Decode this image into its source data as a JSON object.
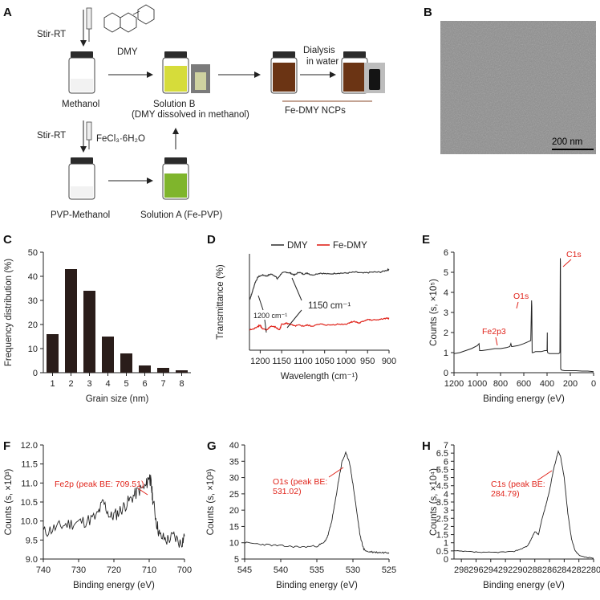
{
  "panels": {
    "A": "A",
    "B": "B",
    "C": "C",
    "D": "D",
    "E": "E",
    "F": "F",
    "G": "G",
    "H": "H"
  },
  "schematic": {
    "stir_rt_1": "Stir-RT",
    "stir_rt_2": "Stir-RT",
    "dmy": "DMY",
    "methanol": "Methanol",
    "solution_b": "Solution B",
    "solution_b_note": "(DMY dissolved in methanol)",
    "dialysis_1": "Dialysis",
    "dialysis_2": "in water",
    "fe_dmy_ncps": "Fe-DMY NCPs",
    "fecl3": "FeCl₃·6H₂O",
    "pvp_methanol": "PVP-Methanol",
    "solution_a": "Solution A (Fe-PVP)"
  },
  "tem": {
    "scale_label": "200 nm"
  },
  "chart_data": [
    {
      "panel": "C",
      "type": "bar",
      "categories": [
        "1",
        "2",
        "3",
        "4",
        "5",
        "6",
        "7",
        "8"
      ],
      "values": [
        16,
        43,
        34,
        15,
        8,
        3,
        2,
        1
      ],
      "xlabel": "Grain size (nm)",
      "ylabel": "Frequency distribution (%)",
      "ylim": [
        0,
        50
      ],
      "yticks": [
        "0",
        "10",
        "20",
        "30",
        "40",
        "50"
      ],
      "color": "#2a1d1a"
    },
    {
      "panel": "D",
      "type": "line",
      "xlabel": "Wavelength (cm⁻¹)",
      "ylabel": "Transmittance (%)",
      "xlim": [
        1225,
        900
      ],
      "xticks": [
        "1200",
        "1150",
        "1100",
        "1050",
        "1000",
        "950",
        "900"
      ],
      "legend": "top",
      "series": [
        {
          "name": "DMY",
          "color": "#3a3a3a",
          "x": [
            1225,
            1220,
            1212,
            1205,
            1195,
            1185,
            1175,
            1165,
            1160,
            1150,
            1140,
            1130,
            1120,
            1110,
            1100,
            1090,
            1080,
            1060,
            1040,
            1020,
            1000,
            980,
            960,
            940,
            920,
            905,
            900
          ],
          "y": [
            52,
            58,
            70,
            76,
            78,
            77,
            79,
            77,
            74,
            80,
            81,
            80,
            78,
            81,
            79,
            80,
            78,
            80,
            79,
            80,
            80,
            81,
            80,
            81,
            81,
            83,
            84
          ]
        },
        {
          "name": "Fe-DMY",
          "color": "#e0241b",
          "x": [
            1225,
            1215,
            1205,
            1200,
            1195,
            1185,
            1175,
            1165,
            1155,
            1150,
            1140,
            1130,
            1120,
            1110,
            1100,
            1090,
            1080,
            1060,
            1040,
            1020,
            1000,
            990,
            980,
            970,
            960,
            950,
            940,
            920,
            905,
            900
          ],
          "y": [
            21,
            22,
            25,
            26,
            22,
            21,
            25,
            24,
            21,
            27,
            28,
            27,
            25,
            26,
            25,
            26,
            25,
            27,
            26,
            27,
            27,
            29,
            30,
            28,
            30,
            32,
            31,
            32,
            33,
            33
          ]
        }
      ],
      "annotations": [
        "1150 cm⁻¹",
        "1200 cm⁻¹"
      ]
    },
    {
      "panel": "E",
      "type": "line",
      "xlabel": "Binding energy (eV)",
      "ylabel": "Counts (s, ×10⁵)",
      "xlim": [
        1200,
        0
      ],
      "ylim": [
        0,
        6
      ],
      "xticks": [
        "1200",
        "1000",
        "800",
        "600",
        "400",
        "200",
        "0"
      ],
      "yticks": [
        "0",
        "1",
        "2",
        "3",
        "4",
        "5",
        "6"
      ],
      "series": [
        {
          "name": "",
          "color": "#222",
          "x": [
            1200,
            1150,
            1100,
            1050,
            1000,
            985,
            980,
            960,
            900,
            850,
            800,
            750,
            720,
            711,
            705,
            700,
            650,
            600,
            560,
            540,
            533,
            531,
            528,
            520,
            500,
            450,
            420,
            400,
            398,
            397,
            395,
            380,
            350,
            300,
            290,
            286,
            285,
            283,
            280,
            270,
            250,
            200,
            150,
            100,
            50,
            0
          ],
          "y": [
            0.95,
            1.0,
            1.1,
            1.2,
            1.35,
            1.45,
            1.1,
            1.1,
            1.15,
            1.2,
            1.2,
            1.25,
            1.3,
            1.45,
            1.3,
            1.3,
            1.35,
            1.45,
            1.55,
            1.6,
            3.6,
            3.3,
            1.0,
            1.0,
            1.05,
            1.05,
            1.1,
            1.1,
            2.0,
            1.1,
            1.0,
            0.95,
            0.95,
            0.95,
            1.0,
            5.7,
            5.5,
            0.2,
            0.15,
            0.12,
            0.1,
            0.1,
            0.1,
            0.08,
            0.08,
            0.05
          ]
        }
      ],
      "annotations": [
        "C1s",
        "O1s",
        "Fe2p3"
      ]
    },
    {
      "panel": "F",
      "type": "line",
      "xlabel": "Binding energy (eV)",
      "ylabel": "Counts (s, ×10³)",
      "xlim": [
        740,
        700
      ],
      "ylim": [
        9.0,
        12.0
      ],
      "xticks": [
        "740",
        "730",
        "720",
        "710",
        "700"
      ],
      "yticks": [
        "9.0",
        "9.5",
        "10.0",
        "10.5",
        "11.0",
        "11.5",
        "12.0"
      ],
      "series": [
        {
          "name": "",
          "color": "#222",
          "x": [
            740,
            737,
            734,
            731,
            728,
            725,
            723,
            721,
            719,
            717,
            715,
            713,
            711,
            710,
            709.5,
            709,
            708,
            707,
            705,
            703,
            701,
            700
          ],
          "y": [
            9.7,
            9.8,
            9.9,
            9.95,
            10.0,
            10.1,
            10.5,
            10.1,
            10.2,
            10.4,
            10.6,
            10.8,
            10.9,
            11.2,
            11.0,
            10.6,
            10.0,
            9.6,
            9.5,
            9.6,
            9.4,
            9.6
          ]
        }
      ],
      "annotations": [
        "Fe2p (peak BE: 709.51)"
      ]
    },
    {
      "panel": "G",
      "type": "line",
      "xlabel": "Binding energy (eV)",
      "ylabel": "Counts (s, ×10³)",
      "xlim": [
        545,
        525
      ],
      "ylim": [
        5,
        40
      ],
      "xticks": [
        "545",
        "540",
        "535",
        "530",
        "525"
      ],
      "yticks": [
        "5",
        "10",
        "15",
        "20",
        "25",
        "30",
        "35",
        "40"
      ],
      "series": [
        {
          "name": "",
          "color": "#222",
          "x": [
            545,
            543,
            541,
            539,
            537,
            535,
            534,
            533.5,
            533,
            532.5,
            532,
            531.5,
            531,
            530.5,
            530,
            529.5,
            529,
            528.5,
            528,
            527,
            526,
            525
          ],
          "y": [
            10,
            9.6,
            9.2,
            8.9,
            8.7,
            9,
            10,
            12,
            16,
            22,
            29,
            35,
            37.5,
            35,
            28,
            20,
            12,
            8,
            7.3,
            7.1,
            7,
            7
          ]
        }
      ],
      "annotations": [
        "O1s (peak BE:",
        "531.02)"
      ]
    },
    {
      "panel": "H",
      "type": "line",
      "xlabel": "Binding energy (eV)",
      "ylabel": "Counts (s, ×10⁴)",
      "xlim": [
        299,
        280
      ],
      "ylim": [
        0,
        7
      ],
      "xticks": [
        "298",
        "296",
        "294",
        "292",
        "290",
        "288",
        "286",
        "284",
        "282",
        "280"
      ],
      "yticks": [
        "0",
        "0.5",
        "1",
        "1.5",
        "2",
        "2.5",
        "3",
        "3.5",
        "4",
        "4.5",
        "5",
        "5.5",
        "6",
        "6.5",
        "7"
      ],
      "series": [
        {
          "name": "",
          "color": "#222",
          "x": [
            299,
            297,
            295,
            293,
            291,
            290,
            289,
            288.5,
            288,
            287.5,
            287,
            286.5,
            286,
            285.5,
            285,
            284.8,
            284.5,
            284,
            283.5,
            283,
            282.5,
            282,
            281,
            280
          ],
          "y": [
            0.5,
            0.45,
            0.4,
            0.42,
            0.45,
            0.6,
            0.8,
            1.2,
            1.7,
            1.5,
            2.5,
            3.3,
            4.2,
            5.4,
            6.3,
            6.6,
            6.3,
            5.0,
            2.8,
            1.2,
            0.5,
            0.25,
            0.1,
            0.05
          ]
        }
      ],
      "annotations": [
        "C1s (peak BE:",
        "284.79)"
      ]
    }
  ]
}
